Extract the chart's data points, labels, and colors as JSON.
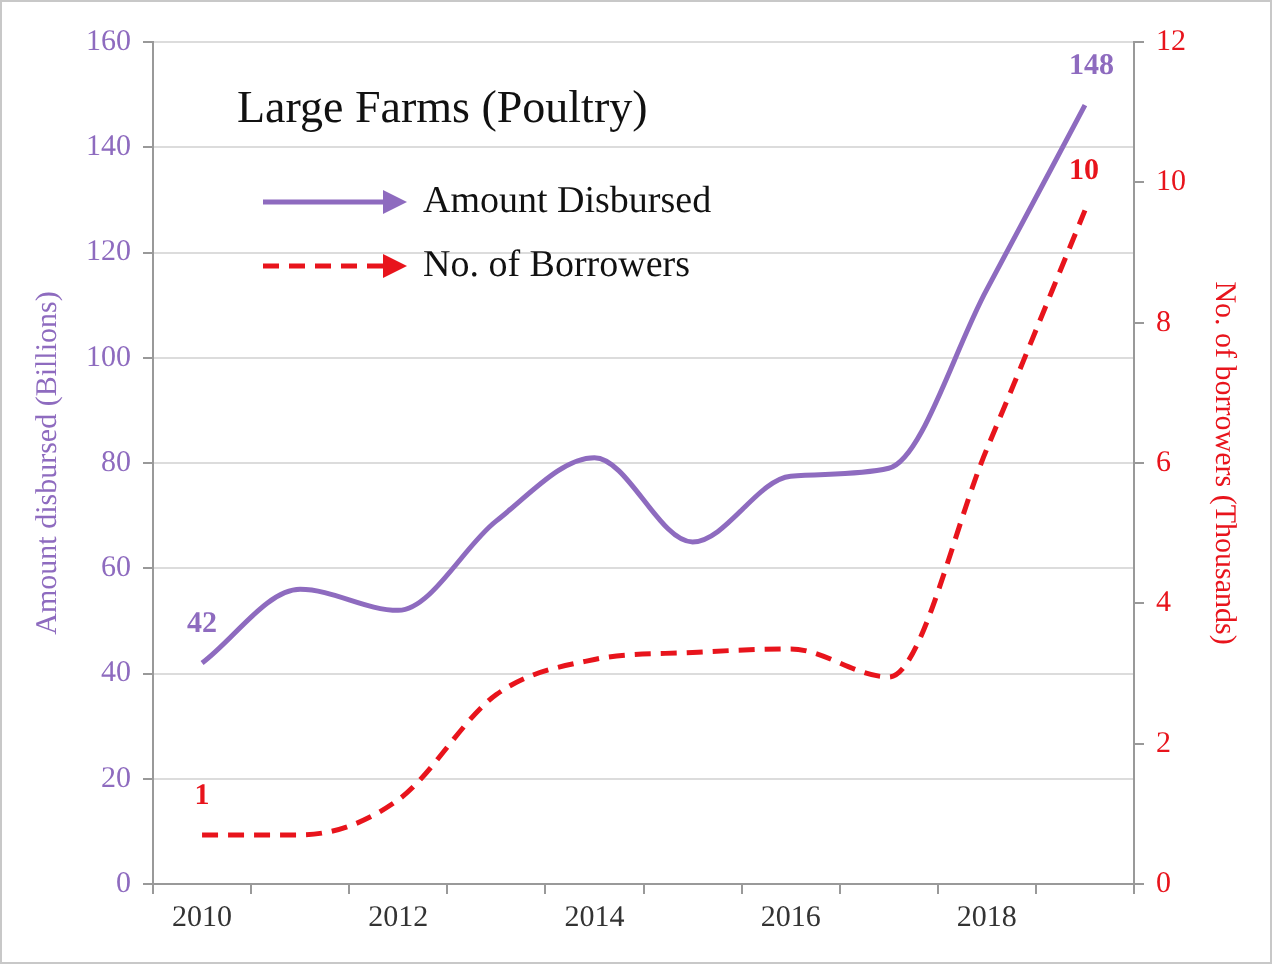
{
  "chart_data": {
    "type": "line",
    "title": "Large Farms (Poultry)",
    "ylabel": "Amount disbursed (Billions)",
    "y2label": "No. of borrowers (Thousands)",
    "categories": [
      "2010",
      null,
      "2012",
      null,
      "2014",
      null,
      "2016",
      null,
      "2018",
      null
    ],
    "series": [
      {
        "name": "Amount Disbursed",
        "color": "#8e6bbf",
        "line_style": "solid",
        "values": [
          42,
          56,
          52,
          69,
          81,
          65,
          77.5,
          79,
          113,
          148
        ],
        "value_labels": [
          "42",
          null,
          null,
          null,
          null,
          null,
          null,
          null,
          null,
          "148"
        ]
      },
      {
        "name": "No. of Borrowers",
        "color": "#e8141c",
        "line_style": "dashed",
        "axis": "y2",
        "values": [
          0.7,
          0.7,
          1.2,
          2.7,
          3.2,
          3.3,
          3.35,
          2.95,
          6.2,
          9.6
        ],
        "value_labels": [
          "1",
          null,
          null,
          null,
          null,
          null,
          null,
          null,
          null,
          "10"
        ]
      }
    ],
    "ylim": [
      0,
      160
    ],
    "yticks": [
      0,
      20,
      40,
      60,
      80,
      100,
      120,
      140,
      160
    ],
    "y2lim": [
      0,
      12
    ],
    "y2ticks": [
      0,
      2,
      4,
      6,
      8,
      10,
      12
    ],
    "grid": "y",
    "legend": "top left",
    "marker": "none"
  }
}
